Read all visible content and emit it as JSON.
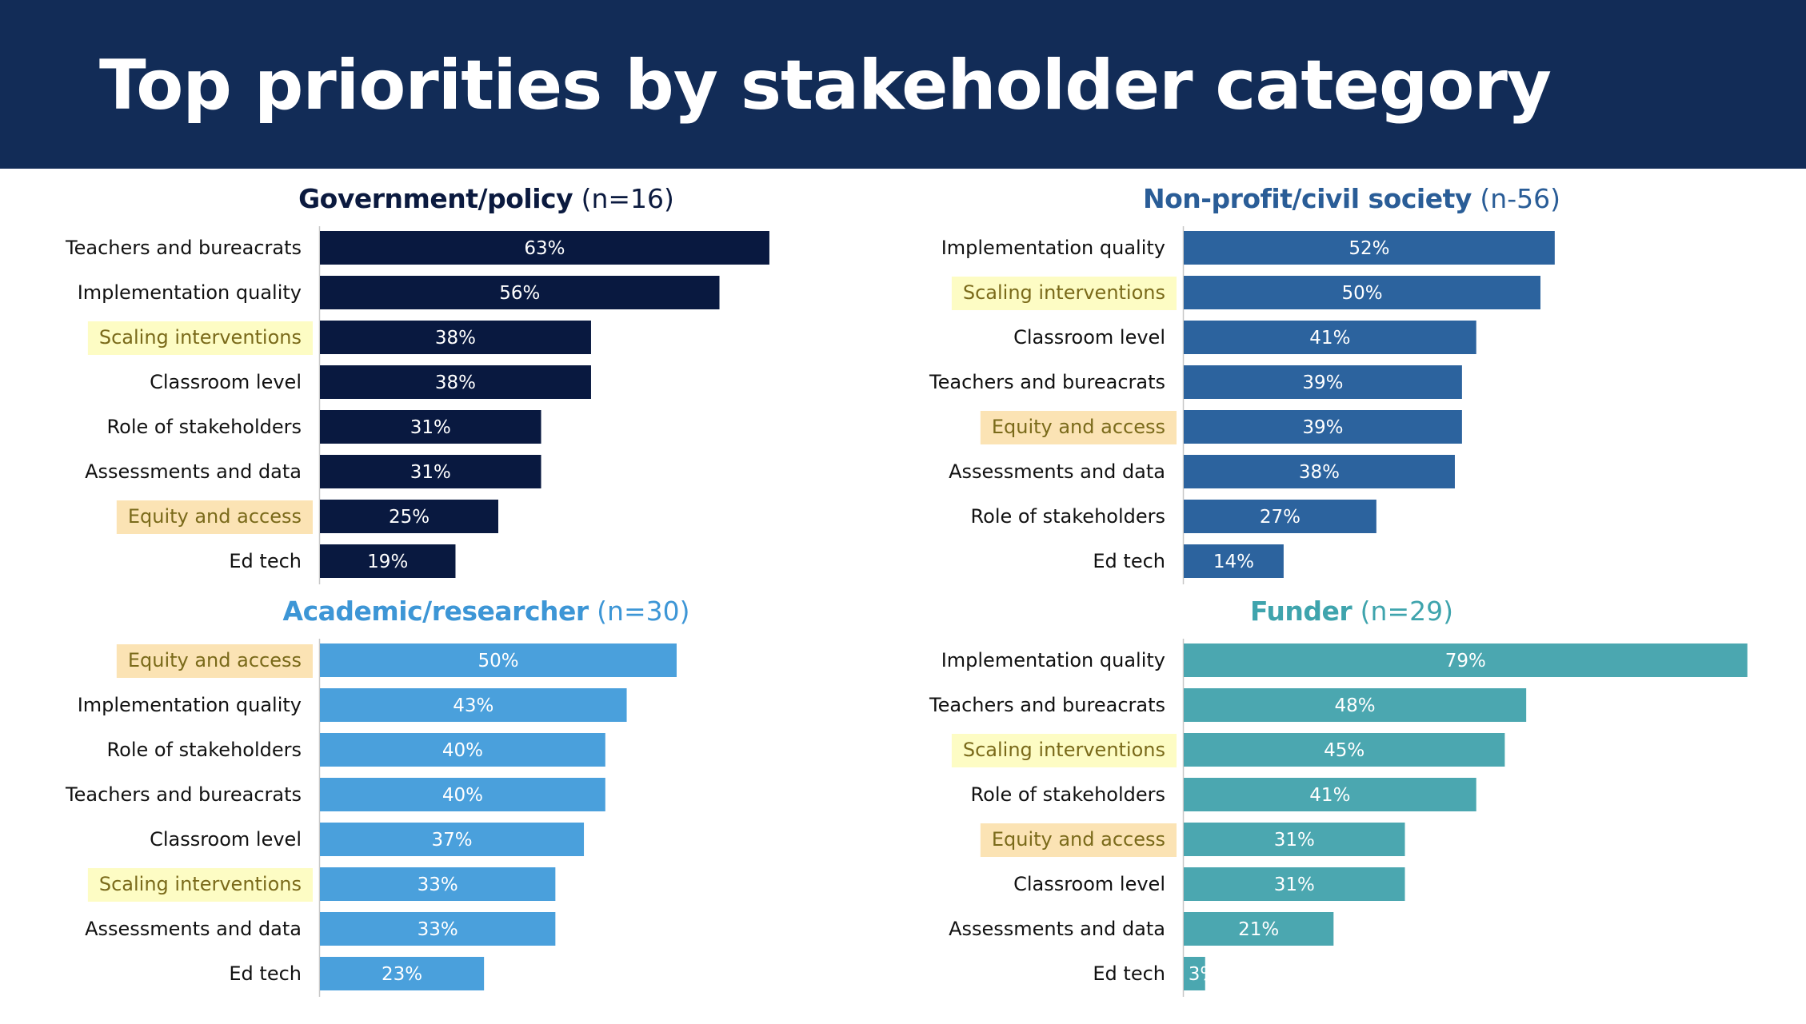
{
  "slide": {
    "title": "Top priorities by stakeholder category"
  },
  "colors": {
    "header_bg": "#122c57",
    "highlight_scaling": "#fdfcc4",
    "highlight_equity": "#fbe3b4",
    "label_text": "#111111"
  },
  "chart_data": [
    {
      "type": "bar",
      "orientation": "horizontal",
      "title": "Government/policy",
      "title_suffix": "(n=16)",
      "title_color": "#0b1a3f",
      "bar_color": "#091940",
      "value_format": "percent",
      "xlim": [
        0,
        100
      ],
      "grid": false,
      "categories": [
        "Teachers and bureacrats",
        "Implementation quality",
        "Scaling interventions",
        "Classroom level",
        "Role of stakeholders",
        "Assessments and data",
        "Equity and access",
        "Ed tech"
      ],
      "values": [
        63,
        56,
        38,
        38,
        31,
        31,
        25,
        19
      ],
      "value_labels": [
        "63%",
        "56%",
        "38%",
        "38%",
        "31%",
        "31%",
        "25%",
        "19%"
      ],
      "highlights": {
        "Scaling interventions": "#fdfcc4",
        "Equity and access": "#fbe3b4"
      }
    },
    {
      "type": "bar",
      "orientation": "horizontal",
      "title": "Non-profit/civil society",
      "title_suffix": "(n-56)",
      "title_color": "#2a5d97",
      "bar_color": "#2c639e",
      "value_format": "percent",
      "xlim": [
        0,
        100
      ],
      "grid": false,
      "categories": [
        "Implementation quality",
        "Scaling interventions",
        "Classroom level",
        "Teachers and bureacrats",
        "Equity and access",
        "Assessments and data",
        "Role of stakeholders",
        "Ed tech"
      ],
      "values": [
        52,
        50,
        41,
        39,
        39,
        38,
        27,
        14
      ],
      "value_labels": [
        "52%",
        "50%",
        "41%",
        "39%",
        "39%",
        "38%",
        "27%",
        "14%"
      ],
      "highlights": {
        "Scaling interventions": "#fdfcc4",
        "Equity and access": "#fbe3b4"
      }
    },
    {
      "type": "bar",
      "orientation": "horizontal",
      "title": "Academic/researcher",
      "title_suffix": "(n=30)",
      "title_color": "#3d96d6",
      "bar_color": "#4aa0dc",
      "value_format": "percent",
      "xlim": [
        0,
        100
      ],
      "grid": false,
      "categories": [
        "Equity and access",
        "Implementation quality",
        "Role of stakeholders",
        "Teachers and bureacrats",
        "Classroom level",
        "Scaling interventions",
        "Assessments and data",
        "Ed tech"
      ],
      "values": [
        50,
        43,
        40,
        40,
        37,
        33,
        33,
        23
      ],
      "value_labels": [
        "50%",
        "43%",
        "40%",
        "40%",
        "37%",
        "33%",
        "33%",
        "23%"
      ],
      "highlights": {
        "Scaling interventions": "#fdfcc4",
        "Equity and access": "#fbe3b4"
      }
    },
    {
      "type": "bar",
      "orientation": "horizontal",
      "title": "Funder",
      "title_suffix": "(n=29)",
      "title_color": "#3fa4ad",
      "bar_color": "#4ba7b0",
      "value_format": "percent",
      "xlim": [
        0,
        100
      ],
      "grid": false,
      "categories": [
        "Implementation quality",
        "Teachers and bureacrats",
        "Scaling interventions",
        "Role of stakeholders",
        "Equity and access",
        "Classroom level",
        "Assessments and data",
        "Ed tech"
      ],
      "values": [
        79,
        48,
        45,
        41,
        31,
        31,
        21,
        3
      ],
      "value_labels": [
        "79%",
        "48%",
        "45%",
        "41%",
        "31%",
        "31%",
        "21%",
        "3%"
      ],
      "highlights": {
        "Scaling interventions": "#fdfcc4",
        "Equity and access": "#fbe3b4"
      }
    }
  ]
}
